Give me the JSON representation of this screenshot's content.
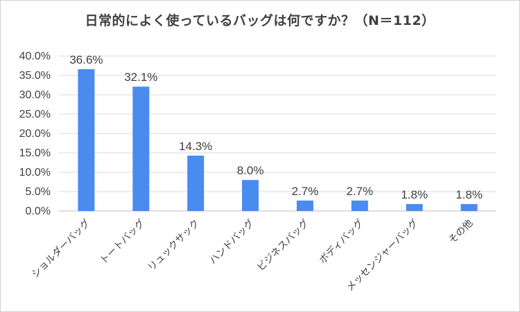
{
  "chart_data": {
    "type": "bar",
    "title": "日常的によく使っているバッグは何ですか？（N＝112）",
    "categories": [
      "ショルダーバッグ",
      "トートバッグ",
      "リュックサック",
      "ハンドバッグ",
      "ビジネスバッグ",
      "ボディバッグ",
      "メッセンジャーバッグ",
      "その他"
    ],
    "values": [
      36.6,
      32.1,
      14.3,
      8.0,
      2.7,
      2.7,
      1.8,
      1.8
    ],
    "data_labels": [
      "36.6%",
      "32.1%",
      "14.3%",
      "8.0%",
      "2.7%",
      "2.7%",
      "1.8%",
      "1.8%"
    ],
    "ylim": [
      0,
      40
    ],
    "yticks": [
      0,
      5,
      10,
      15,
      20,
      25,
      30,
      35,
      40
    ],
    "ytick_labels": [
      "0.0%",
      "5.0%",
      "10.0%",
      "15.0%",
      "20.0%",
      "25.0%",
      "30.0%",
      "35.0%",
      "40.0%"
    ],
    "grid": true,
    "legend": "none",
    "xlabel": "",
    "ylabel": "",
    "colors": {
      "bar": "#4A8BF0",
      "grid": "#d9d9d9",
      "axis": "#bfbfbf",
      "text": "#404040"
    }
  }
}
